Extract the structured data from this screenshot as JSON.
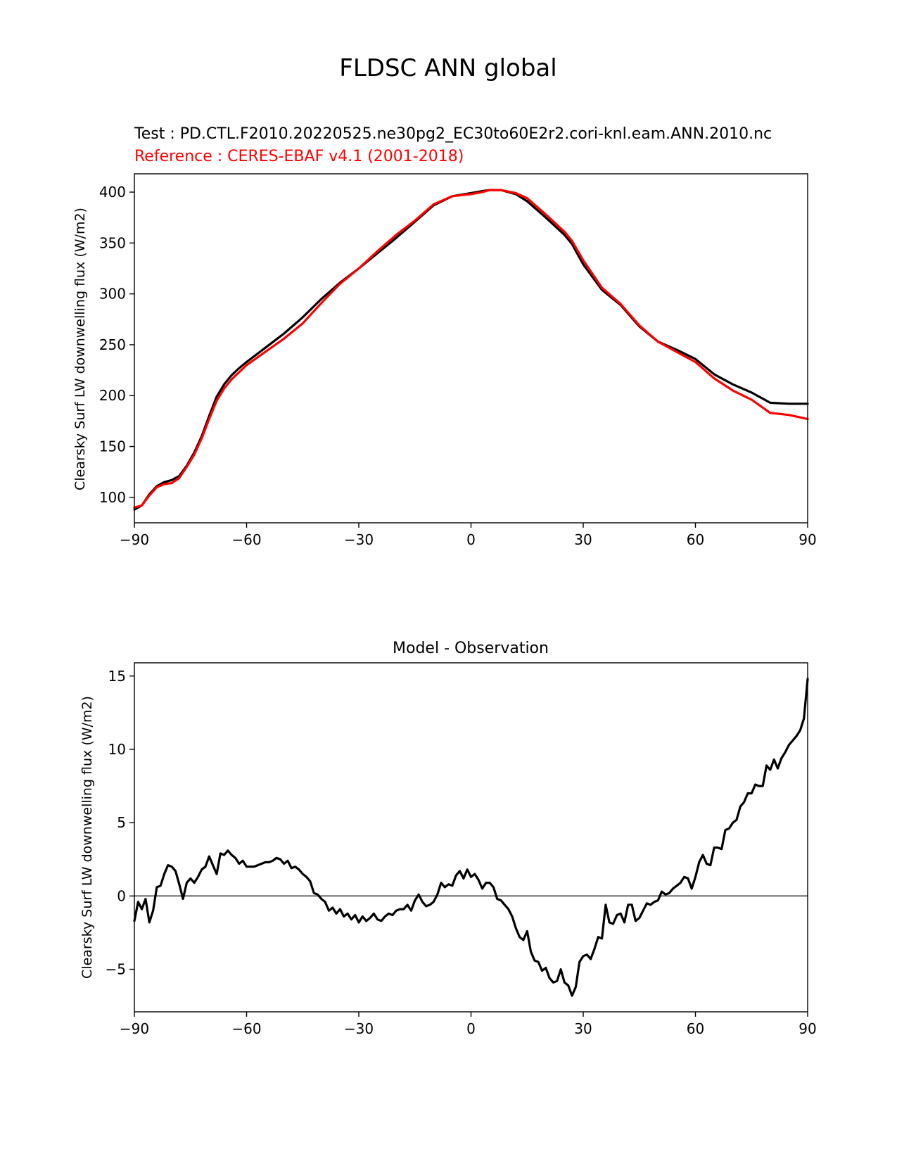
{
  "figure": {
    "title": "FLDSC ANN global"
  },
  "chart_data": [
    {
      "type": "line",
      "title_test": "Test : PD.CTL.F2010.20220525.ne30pg2_EC30to60E2r2.cori-knl.eam.ANN.2010.nc",
      "title_reference": "Reference : CERES-EBAF v4.1 (2001-2018)",
      "xlabel": "",
      "ylabel": "Clearsky Surf LW downwelling flux (W/m2)",
      "xlim": [
        -90,
        90
      ],
      "ylim": [
        75,
        418
      ],
      "xticks": [
        -90,
        -60,
        -30,
        0,
        30,
        60,
        90
      ],
      "yticks": [
        100,
        150,
        200,
        250,
        300,
        350,
        400
      ],
      "grid": false,
      "colors": {
        "test": "#000000",
        "reference": "#ff0000"
      },
      "series": [
        {
          "color": "#000000",
          "x": [
            -90,
            -88,
            -86,
            -84,
            -82,
            -80,
            -78,
            -76,
            -74,
            -72,
            -70,
            -68,
            -66,
            -64,
            -62,
            -60,
            -55,
            -50,
            -45,
            -40,
            -35,
            -30,
            -25,
            -20,
            -15,
            -10,
            -5,
            0,
            3,
            5,
            8,
            12,
            15,
            20,
            25,
            27,
            30,
            35,
            40,
            45,
            50,
            55,
            60,
            65,
            70,
            75,
            80,
            85,
            90
          ],
          "y": [
            88,
            92,
            103,
            111,
            115,
            117,
            121,
            131,
            144,
            160,
            180,
            199,
            211,
            220,
            227,
            233,
            247,
            261,
            277,
            295,
            311,
            325,
            340,
            355,
            371,
            387,
            396,
            399,
            401,
            402,
            402,
            398,
            391,
            375,
            358,
            349,
            329,
            304,
            289,
            268,
            253,
            245,
            236,
            221,
            211,
            203,
            193,
            192,
            192
          ]
        },
        {
          "color": "#ff0000",
          "x": [
            -90,
            -88,
            -86,
            -84,
            -82,
            -80,
            -78,
            -76,
            -74,
            -72,
            -70,
            -68,
            -66,
            -64,
            -62,
            -60,
            -55,
            -50,
            -45,
            -40,
            -35,
            -30,
            -25,
            -20,
            -15,
            -10,
            -5,
            0,
            3,
            5,
            8,
            12,
            15,
            20,
            25,
            27,
            30,
            35,
            40,
            45,
            50,
            55,
            60,
            65,
            70,
            75,
            80,
            85,
            90
          ],
          "y": [
            90,
            92,
            102,
            110,
            113,
            114,
            119,
            130,
            142,
            158,
            177,
            195,
            207,
            216,
            223,
            230,
            243,
            256,
            271,
            291,
            310,
            325,
            342,
            358,
            372,
            388,
            396,
            398,
            400,
            402,
            402,
            399,
            394,
            378,
            361,
            352,
            333,
            306,
            290,
            269,
            253,
            243,
            233,
            217,
            205,
            196,
            183,
            181,
            177
          ]
        }
      ]
    },
    {
      "type": "line",
      "title": "Model - Observation",
      "xlabel": "",
      "ylabel": "Clearsky Surf LW downwelling flux (W/m2)",
      "xlim": [
        -90,
        90
      ],
      "ylim": [
        -7.9,
        15.9
      ],
      "xticks": [
        -90,
        -60,
        -30,
        0,
        30,
        60,
        90
      ],
      "yticks": [
        -5,
        0,
        5,
        10,
        15
      ],
      "grid": false,
      "zero_line_color": "#808080",
      "series": [
        {
          "color": "#000000",
          "x": [
            -90,
            -89,
            -88,
            -87,
            -86,
            -85,
            -84,
            -83,
            -82,
            -81,
            -80,
            -79,
            -78,
            -77,
            -76,
            -75,
            -74,
            -73,
            -72,
            -71,
            -70,
            -69,
            -68,
            -67,
            -66,
            -65,
            -64,
            -63,
            -62,
            -61,
            -60,
            -59,
            -58,
            -57,
            -56,
            -55,
            -54,
            -53,
            -52,
            -51,
            -50,
            -49,
            -48,
            -47,
            -46,
            -45,
            -44,
            -43,
            -42,
            -41,
            -40,
            -39,
            -38,
            -37,
            -36,
            -35,
            -34,
            -33,
            -32,
            -31,
            -30,
            -29,
            -28,
            -27,
            -26,
            -25,
            -24,
            -23,
            -22,
            -21,
            -20,
            -19,
            -18,
            -17,
            -16,
            -15,
            -14,
            -13,
            -12,
            -11,
            -10,
            -9,
            -8,
            -7,
            -6,
            -5,
            -4,
            -3,
            -2,
            -1,
            0,
            1,
            2,
            3,
            4,
            5,
            6,
            7,
            8,
            9,
            10,
            11,
            12,
            13,
            14,
            15,
            16,
            17,
            18,
            19,
            20,
            21,
            22,
            23,
            24,
            25,
            26,
            27,
            28,
            29,
            30,
            31,
            32,
            33,
            34,
            35,
            36,
            37,
            38,
            39,
            40,
            41,
            42,
            43,
            44,
            45,
            46,
            47,
            48,
            49,
            50,
            51,
            52,
            53,
            54,
            55,
            56,
            57,
            58,
            59,
            60,
            61,
            62,
            63,
            64,
            65,
            66,
            67,
            68,
            69,
            70,
            71,
            72,
            73,
            74,
            75,
            76,
            77,
            78,
            79,
            80,
            81,
            82,
            83,
            84,
            85,
            86,
            87,
            88,
            89,
            90
          ],
          "y": [
            -1.7,
            -0.4,
            -0.9,
            -0.2,
            -1.8,
            -1.0,
            0.6,
            0.7,
            1.5,
            2.1,
            2.0,
            1.7,
            0.8,
            -0.2,
            0.9,
            1.2,
            0.9,
            1.3,
            1.8,
            2.0,
            2.7,
            2.1,
            1.5,
            2.9,
            2.8,
            3.1,
            2.8,
            2.6,
            2.2,
            2.4,
            2.0,
            2.0,
            2.0,
            2.1,
            2.2,
            2.3,
            2.3,
            2.4,
            2.6,
            2.5,
            2.2,
            2.4,
            1.9,
            2.0,
            1.8,
            1.5,
            1.3,
            1.0,
            0.2,
            0.1,
            -0.2,
            -0.4,
            -1.0,
            -0.8,
            -1.2,
            -0.9,
            -1.4,
            -1.2,
            -1.6,
            -1.3,
            -1.8,
            -1.4,
            -1.7,
            -1.5,
            -1.2,
            -1.6,
            -1.7,
            -1.4,
            -1.2,
            -1.3,
            -1.0,
            -0.9,
            -0.9,
            -0.6,
            -1.0,
            -0.3,
            0.1,
            -0.4,
            -0.7,
            -0.6,
            -0.4,
            0.1,
            0.9,
            0.6,
            0.8,
            0.7,
            1.4,
            1.7,
            1.2,
            1.8,
            1.3,
            1.5,
            1.1,
            0.5,
            0.9,
            0.9,
            0.6,
            -0.2,
            -0.3,
            -0.6,
            -0.9,
            -1.4,
            -2.2,
            -2.8,
            -3.0,
            -2.4,
            -3.8,
            -4.4,
            -4.5,
            -5.1,
            -4.9,
            -5.6,
            -5.9,
            -5.8,
            -5.0,
            -5.9,
            -6.1,
            -6.8,
            -6.2,
            -4.5,
            -4.1,
            -4.0,
            -4.3,
            -3.6,
            -2.8,
            -2.9,
            -0.6,
            -1.8,
            -1.9,
            -1.3,
            -1.2,
            -1.8,
            -0.6,
            -0.6,
            -1.7,
            -1.5,
            -1.0,
            -0.5,
            -0.6,
            -0.4,
            -0.3,
            0.3,
            0.1,
            0.2,
            0.5,
            0.7,
            0.9,
            1.3,
            1.2,
            0.5,
            1.3,
            2.3,
            2.8,
            2.2,
            2.1,
            3.3,
            3.3,
            3.2,
            4.5,
            4.6,
            5.0,
            5.2,
            6.1,
            6.4,
            7.0,
            7.0,
            7.6,
            7.5,
            7.5,
            8.9,
            8.6,
            9.3,
            8.7,
            9.4,
            9.8,
            10.3,
            10.6,
            10.9,
            11.3,
            12.1,
            14.8
          ]
        }
      ]
    }
  ]
}
